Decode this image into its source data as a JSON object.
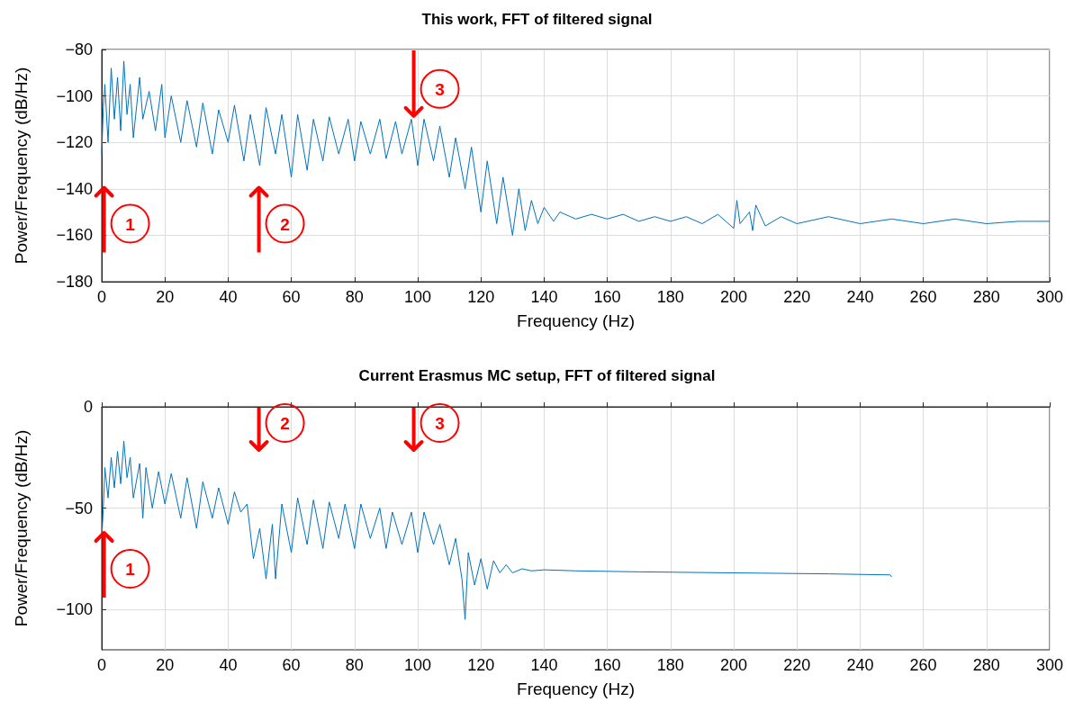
{
  "chart_data": [
    {
      "type": "line",
      "title": "This work, FFT of filtered signal",
      "xlabel": "Frequency (Hz)",
      "ylabel": "Power/Frequency (dB/Hz)",
      "xlim": [
        0,
        300
      ],
      "ylim": [
        -180,
        -80
      ],
      "xticks": [
        0,
        20,
        40,
        60,
        80,
        100,
        120,
        140,
        160,
        180,
        200,
        220,
        240,
        260,
        280,
        300
      ],
      "yticks": [
        -180,
        -160,
        -140,
        -120,
        -100,
        -80
      ],
      "grid": true,
      "marker": "none",
      "line_style": "solid",
      "series": [
        {
          "color": "#0072bd",
          "x": [
            0,
            0.5,
            1,
            2,
            3,
            4,
            5,
            6,
            7,
            8,
            9,
            10,
            12,
            13,
            15,
            17,
            19,
            20,
            22,
            25,
            27,
            30,
            32,
            35,
            37,
            40,
            42,
            45,
            47,
            50,
            52,
            55,
            57,
            60,
            62,
            65,
            67,
            70,
            72,
            75,
            78,
            80,
            82,
            85,
            88,
            90,
            93,
            95,
            98,
            100,
            102,
            105,
            107,
            110,
            112,
            115,
            117,
            120,
            122,
            125,
            127,
            130,
            132,
            134,
            136,
            138,
            140,
            143,
            145,
            150,
            155,
            160,
            165,
            170,
            175,
            180,
            185,
            190,
            195,
            200,
            201,
            202,
            205,
            206,
            207,
            210,
            215,
            220,
            230,
            240,
            250,
            260,
            270,
            280,
            290,
            300
          ],
          "values": [
            -125,
            -105,
            -95,
            -120,
            -88,
            -110,
            -92,
            -115,
            -85,
            -108,
            -95,
            -118,
            -92,
            -110,
            -98,
            -115,
            -95,
            -118,
            -100,
            -120,
            -102,
            -122,
            -103,
            -125,
            -106,
            -120,
            -104,
            -128,
            -108,
            -130,
            -105,
            -125,
            -108,
            -135,
            -108,
            -132,
            -110,
            -128,
            -109,
            -125,
            -110,
            -128,
            -111,
            -125,
            -110,
            -127,
            -111,
            -125,
            -110,
            -130,
            -110,
            -128,
            -113,
            -135,
            -118,
            -140,
            -122,
            -150,
            -128,
            -155,
            -135,
            -160,
            -140,
            -158,
            -145,
            -155,
            -148,
            -154,
            -150,
            -153,
            -151,
            -153,
            -151,
            -154,
            -152,
            -154,
            -152,
            -155,
            -151,
            -157,
            -145,
            -155,
            -150,
            -158,
            -147,
            -156,
            -152,
            -155,
            -152,
            -155,
            -153,
            -155,
            -153,
            -155,
            -154,
            -154
          ]
        }
      ],
      "annotations": [
        {
          "text": "1",
          "x": 9,
          "y": -155
        },
        {
          "text": "2",
          "x": 58,
          "y": -155
        },
        {
          "text": "3",
          "x": 107,
          "y": -97
        }
      ]
    },
    {
      "type": "line",
      "title": "Current Erasmus MC setup, FFT of filtered signal",
      "xlabel": "Frequency (Hz)",
      "ylabel": "Power/Frequency (dB/Hz)",
      "xlim": [
        0,
        300
      ],
      "ylim": [
        -120,
        0
      ],
      "xticks": [
        0,
        20,
        40,
        60,
        80,
        100,
        120,
        140,
        160,
        180,
        200,
        220,
        240,
        260,
        280,
        300
      ],
      "yticks": [
        -100,
        -50,
        0
      ],
      "grid": true,
      "marker": "none",
      "line_style": "solid",
      "series": [
        {
          "color": "#0072bd",
          "x": [
            0,
            0.5,
            1,
            2,
            3,
            4,
            5,
            6,
            7,
            8,
            9,
            10,
            12,
            13,
            14,
            16,
            18,
            20,
            22,
            25,
            27,
            30,
            32,
            35,
            37,
            40,
            42,
            44,
            46,
            48,
            50,
            52,
            54,
            55,
            57,
            60,
            62,
            65,
            67,
            70,
            72,
            75,
            77,
            80,
            82,
            85,
            88,
            90,
            92,
            95,
            98,
            100,
            102,
            105,
            107,
            110,
            112,
            114,
            115,
            116,
            118,
            120,
            122,
            124,
            126,
            128,
            130,
            133,
            136,
            140,
            150,
            170,
            200,
            230,
            249.5,
            250
          ],
          "values": [
            -65,
            -50,
            -30,
            -45,
            -25,
            -40,
            -22,
            -38,
            -17,
            -35,
            -25,
            -45,
            -28,
            -55,
            -30,
            -50,
            -32,
            -48,
            -33,
            -55,
            -35,
            -60,
            -37,
            -55,
            -40,
            -58,
            -42,
            -52,
            -48,
            -75,
            -60,
            -85,
            -58,
            -85,
            -48,
            -72,
            -45,
            -68,
            -46,
            -70,
            -47,
            -65,
            -48,
            -70,
            -48,
            -65,
            -50,
            -70,
            -52,
            -68,
            -52,
            -72,
            -52,
            -68,
            -58,
            -78,
            -65,
            -85,
            -105,
            -72,
            -88,
            -75,
            -90,
            -76,
            -82,
            -78,
            -82,
            -80,
            -81,
            -80.5,
            -81,
            -81.5,
            -82,
            -82.5,
            -83,
            -84
          ]
        }
      ],
      "annotations": [
        {
          "text": "1",
          "x": 9,
          "y": -80
        },
        {
          "text": "2",
          "x": 58,
          "y": -8
        },
        {
          "text": "3",
          "x": 107,
          "y": -8
        }
      ]
    }
  ]
}
